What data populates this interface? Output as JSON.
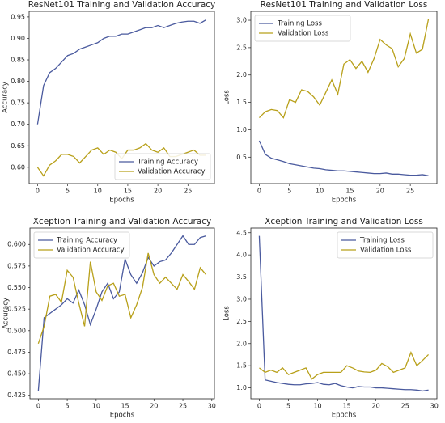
{
  "chart_data": [
    {
      "type": "line",
      "title": "ResNet101 Training and Validation Accuracy",
      "x_label": "Epochs",
      "y_label": "Accuracy",
      "x": [
        0,
        1,
        2,
        3,
        4,
        5,
        6,
        7,
        8,
        9,
        10,
        11,
        12,
        13,
        14,
        15,
        16,
        17,
        18,
        19,
        20,
        21,
        22,
        23,
        24,
        25,
        26,
        27,
        28
      ],
      "series": [
        {
          "name": "Training Accuracy",
          "color": "#4a5a9e",
          "values": [
            0.7,
            0.79,
            0.82,
            0.83,
            0.845,
            0.86,
            0.865,
            0.875,
            0.88,
            0.885,
            0.89,
            0.9,
            0.905,
            0.905,
            0.91,
            0.91,
            0.915,
            0.92,
            0.925,
            0.925,
            0.93,
            0.925,
            0.93,
            0.935,
            0.938,
            0.94,
            0.94,
            0.935,
            0.943
          ]
        },
        {
          "name": "Validation Accuracy",
          "color": "#b8a01a",
          "values": [
            0.6,
            0.58,
            0.605,
            0.615,
            0.63,
            0.63,
            0.625,
            0.61,
            0.625,
            0.64,
            0.645,
            0.63,
            0.64,
            0.635,
            0.62,
            0.64,
            0.64,
            0.645,
            0.655,
            0.64,
            0.635,
            0.645,
            0.625,
            0.625,
            0.63,
            0.635,
            0.64,
            0.628,
            0.628
          ]
        }
      ],
      "xlim": [
        -1.4,
        29.4
      ],
      "ylim": [
        0.562,
        0.963
      ],
      "xticks": [
        0,
        5,
        10,
        15,
        20,
        25
      ],
      "yticks": [
        {
          "value": 0.6,
          "label": "0.60"
        },
        0.65,
        {
          "value": 0.7,
          "label": "0.70"
        },
        0.75,
        {
          "value": 0.8,
          "label": "0.80"
        },
        0.85,
        {
          "value": 0.9,
          "label": "0.90"
        },
        0.95
      ],
      "legend": "lower right"
    },
    {
      "type": "line",
      "title": "ResNet101 Training and Validation Loss",
      "x_label": "Epochs",
      "y_label": "Loss",
      "x": [
        0,
        1,
        2,
        3,
        4,
        5,
        6,
        7,
        8,
        9,
        10,
        11,
        12,
        13,
        14,
        15,
        16,
        17,
        18,
        19,
        20,
        21,
        22,
        23,
        24,
        25,
        26,
        27,
        28
      ],
      "series": [
        {
          "name": "Training Loss",
          "color": "#4a5a9e",
          "values": [
            0.8,
            0.55,
            0.48,
            0.45,
            0.42,
            0.38,
            0.36,
            0.34,
            0.32,
            0.3,
            0.29,
            0.27,
            0.26,
            0.25,
            0.25,
            0.24,
            0.23,
            0.22,
            0.21,
            0.2,
            0.2,
            0.21,
            0.19,
            0.19,
            0.18,
            0.17,
            0.17,
            0.18,
            0.16
          ]
        },
        {
          "name": "Validation Loss",
          "color": "#b8a01a",
          "values": [
            1.22,
            1.33,
            1.37,
            1.35,
            1.22,
            1.55,
            1.5,
            1.73,
            1.7,
            1.6,
            1.45,
            1.68,
            1.91,
            1.65,
            2.2,
            2.28,
            2.12,
            2.25,
            2.05,
            2.3,
            2.65,
            2.55,
            2.48,
            2.15,
            2.3,
            2.75,
            2.4,
            2.47,
            3.02
          ]
        }
      ],
      "xlim": [
        -1.4,
        29.4
      ],
      "ylim": [
        0.017,
        3.163
      ],
      "xticks": [
        0,
        5,
        10,
        15,
        20,
        25
      ],
      "yticks": [
        0.5,
        {
          "value": 1,
          "label": "1.0"
        },
        1.5,
        {
          "value": 2,
          "label": "2.0"
        },
        2.5,
        {
          "value": 3,
          "label": "3.0"
        }
      ],
      "legend": "upper left"
    },
    {
      "type": "line",
      "title": "Xception Training and Validation Accuracy",
      "x_label": "Epochs",
      "y_label": "Accuracy",
      "x": [
        0,
        1,
        2,
        3,
        4,
        5,
        6,
        7,
        8,
        9,
        10,
        11,
        12,
        13,
        14,
        15,
        16,
        17,
        18,
        19,
        20,
        21,
        22,
        23,
        24,
        25,
        26,
        27,
        28,
        29
      ],
      "series": [
        {
          "name": "Training Accuracy",
          "color": "#4a5a9e",
          "values": [
            0.43,
            0.515,
            0.52,
            0.525,
            0.53,
            0.537,
            0.532,
            0.547,
            0.53,
            0.507,
            0.525,
            0.545,
            0.555,
            0.537,
            0.545,
            0.583,
            0.565,
            0.555,
            0.567,
            0.585,
            0.575,
            0.58,
            0.582,
            0.59,
            0.6,
            0.61,
            0.6,
            0.6,
            0.608,
            0.61
          ]
        },
        {
          "name": "Validation Accuracy",
          "color": "#b8a01a",
          "values": [
            0.485,
            0.505,
            0.54,
            0.542,
            0.533,
            0.57,
            0.562,
            0.532,
            0.505,
            0.58,
            0.545,
            0.535,
            0.552,
            0.555,
            0.54,
            0.542,
            0.515,
            0.53,
            0.55,
            0.59,
            0.565,
            0.555,
            0.562,
            0.555,
            0.548,
            0.565,
            0.557,
            0.548,
            0.573,
            0.565
          ]
        }
      ],
      "xlim": [
        -1.45,
        30.45
      ],
      "ylim": [
        0.421,
        0.619
      ],
      "xticks": [
        0,
        5,
        10,
        15,
        20,
        25,
        30
      ],
      "yticks": [
        0.425,
        {
          "value": 0.45,
          "label": "0.450"
        },
        0.475,
        {
          "value": 0.5,
          "label": "0.500"
        },
        0.525,
        {
          "value": 0.55,
          "label": "0.550"
        },
        0.575,
        {
          "value": 0.6,
          "label": "0.600"
        }
      ],
      "legend": "upper left"
    },
    {
      "type": "line",
      "title": "Xception Training and Validation Loss",
      "x_label": "Epochs",
      "y_label": "Loss",
      "x": [
        0,
        1,
        2,
        3,
        4,
        5,
        6,
        7,
        8,
        9,
        10,
        11,
        12,
        13,
        14,
        15,
        16,
        17,
        18,
        19,
        20,
        21,
        22,
        23,
        24,
        25,
        26,
        27,
        28,
        29
      ],
      "series": [
        {
          "name": "Training Loss",
          "color": "#4a5a9e",
          "values": [
            4.43,
            1.18,
            1.15,
            1.12,
            1.1,
            1.08,
            1.07,
            1.07,
            1.09,
            1.1,
            1.12,
            1.08,
            1.07,
            1.1,
            1.05,
            1.02,
            1.0,
            1.03,
            1.02,
            1.02,
            1.0,
            1.0,
            0.99,
            0.98,
            0.97,
            0.96,
            0.96,
            0.95,
            0.93,
            0.95
          ]
        },
        {
          "name": "Validation Loss",
          "color": "#b8a01a",
          "values": [
            1.45,
            1.35,
            1.4,
            1.35,
            1.45,
            1.3,
            1.35,
            1.4,
            1.45,
            1.2,
            1.3,
            1.35,
            1.35,
            1.35,
            1.35,
            1.5,
            1.45,
            1.38,
            1.36,
            1.35,
            1.4,
            1.55,
            1.48,
            1.35,
            1.4,
            1.45,
            1.8,
            1.5,
            1.62,
            1.75
          ]
        }
      ],
      "xlim": [
        -1.45,
        30.45
      ],
      "ylim": [
        0.755,
        4.605
      ],
      "xticks": [
        0,
        5,
        10,
        15,
        20,
        25,
        30
      ],
      "yticks": [
        {
          "value": 1,
          "label": "1.0"
        },
        1.5,
        {
          "value": 2,
          "label": "2.0"
        },
        2.5,
        {
          "value": 3,
          "label": "3.0"
        },
        3.5,
        {
          "value": 4,
          "label": "4.0"
        },
        4.5
      ],
      "legend": "upper right"
    }
  ]
}
